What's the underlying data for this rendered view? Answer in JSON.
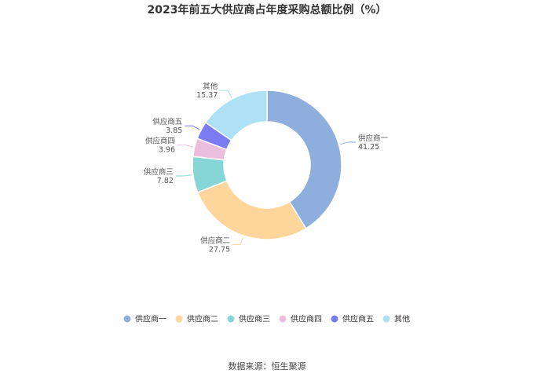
{
  "title": "2023年前五大供应商占年度采购总额比例（%）",
  "source": "数据来源：恒生聚源",
  "chart_data": {
    "type": "pie",
    "variant": "donut",
    "title": "2023年前五大供应商占年度采购总额比例（%）",
    "legend_position": "bottom",
    "categories": [
      "供应商一",
      "供应商二",
      "供应商三",
      "供应商四",
      "供应商五",
      "其他"
    ],
    "values": [
      41.25,
      27.75,
      7.82,
      3.96,
      3.85,
      15.37
    ],
    "value_labels": [
      "41.25",
      "27.75",
      "7.82",
      "3.96",
      "3.85",
      "15.37"
    ],
    "colors": [
      "#8eaedd",
      "#fed59a",
      "#86d6d7",
      "#eabedc",
      "#7b7bf2",
      "#aee0f6"
    ]
  }
}
